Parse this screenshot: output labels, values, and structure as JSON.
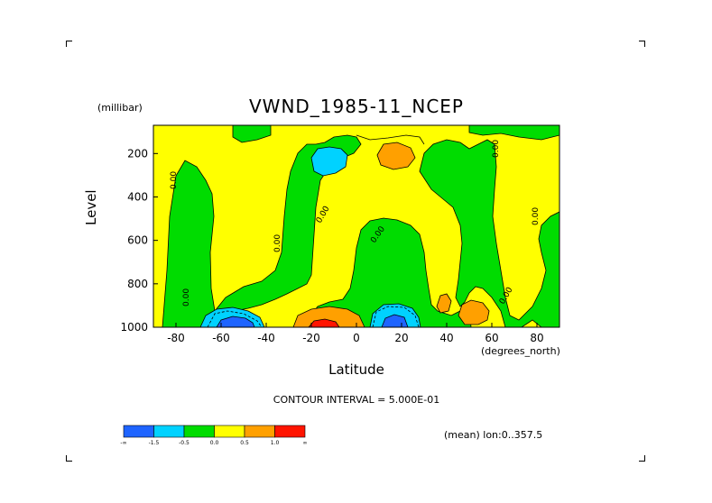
{
  "chart_data": {
    "type": "heatmap",
    "title": "VWND_1985-11_NCEP",
    "xlabel": "Latitude",
    "x_units": "(degrees_north)",
    "ylabel": "Level",
    "y_units": "(millibar)",
    "xlim": [
      -90,
      90
    ],
    "ylim": [
      1000,
      70
    ],
    "x_ticks": [
      "-80",
      "-60",
      "-40",
      "-20",
      "0",
      "20",
      "40",
      "60",
      "80"
    ],
    "x_tick_values": [
      -80,
      -60,
      -40,
      -20,
      0,
      20,
      40,
      60,
      80
    ],
    "y_ticks": [
      "200",
      "400",
      "600",
      "800",
      "1000"
    ],
    "y_tick_values": [
      200,
      400,
      600,
      800,
      1000
    ],
    "contour_interval": "CONTOUR INTERVAL = 5.000E-01",
    "footnote": "(mean) lon:0..357.5",
    "contour_labels": [
      "0.00"
    ],
    "colorbar": {
      "labels": [
        "-∞",
        "-1.5",
        "-0.5",
        "0.0",
        "0.5",
        "1.0",
        "∞"
      ],
      "colors": [
        "#1e64ff",
        "#00d2ff",
        "#00dc00",
        "#ffff00",
        "#ffa000",
        "#ff1400"
      ]
    },
    "features": [
      {
        "sign": "negative",
        "value_range": "< -0.5",
        "lat": -55,
        "level": 1000,
        "name": "southern mid-latitude low-level minimum"
      },
      {
        "sign": "positive",
        "value_range": "> 1.0",
        "lat": -18,
        "level": 1000,
        "name": "southern subtropical low-level maximum"
      },
      {
        "sign": "negative",
        "value_range": "< -0.5",
        "lat": 16,
        "level": 1000,
        "name": "northern tropical low-level minimum"
      },
      {
        "sign": "positive",
        "value_range": "0.5 to 1.0",
        "lat": 55,
        "level": 950,
        "name": "northern mid-latitude low-level maximum"
      },
      {
        "sign": "negative",
        "value_range": "-1.5 to -0.5",
        "lat": -10,
        "level": 200,
        "name": "upper-level tropical minimum"
      },
      {
        "sign": "positive",
        "value_range": "0.5 to 1.0",
        "lat": 10,
        "level": 200,
        "name": "upper-level tropical maximum"
      }
    ]
  }
}
